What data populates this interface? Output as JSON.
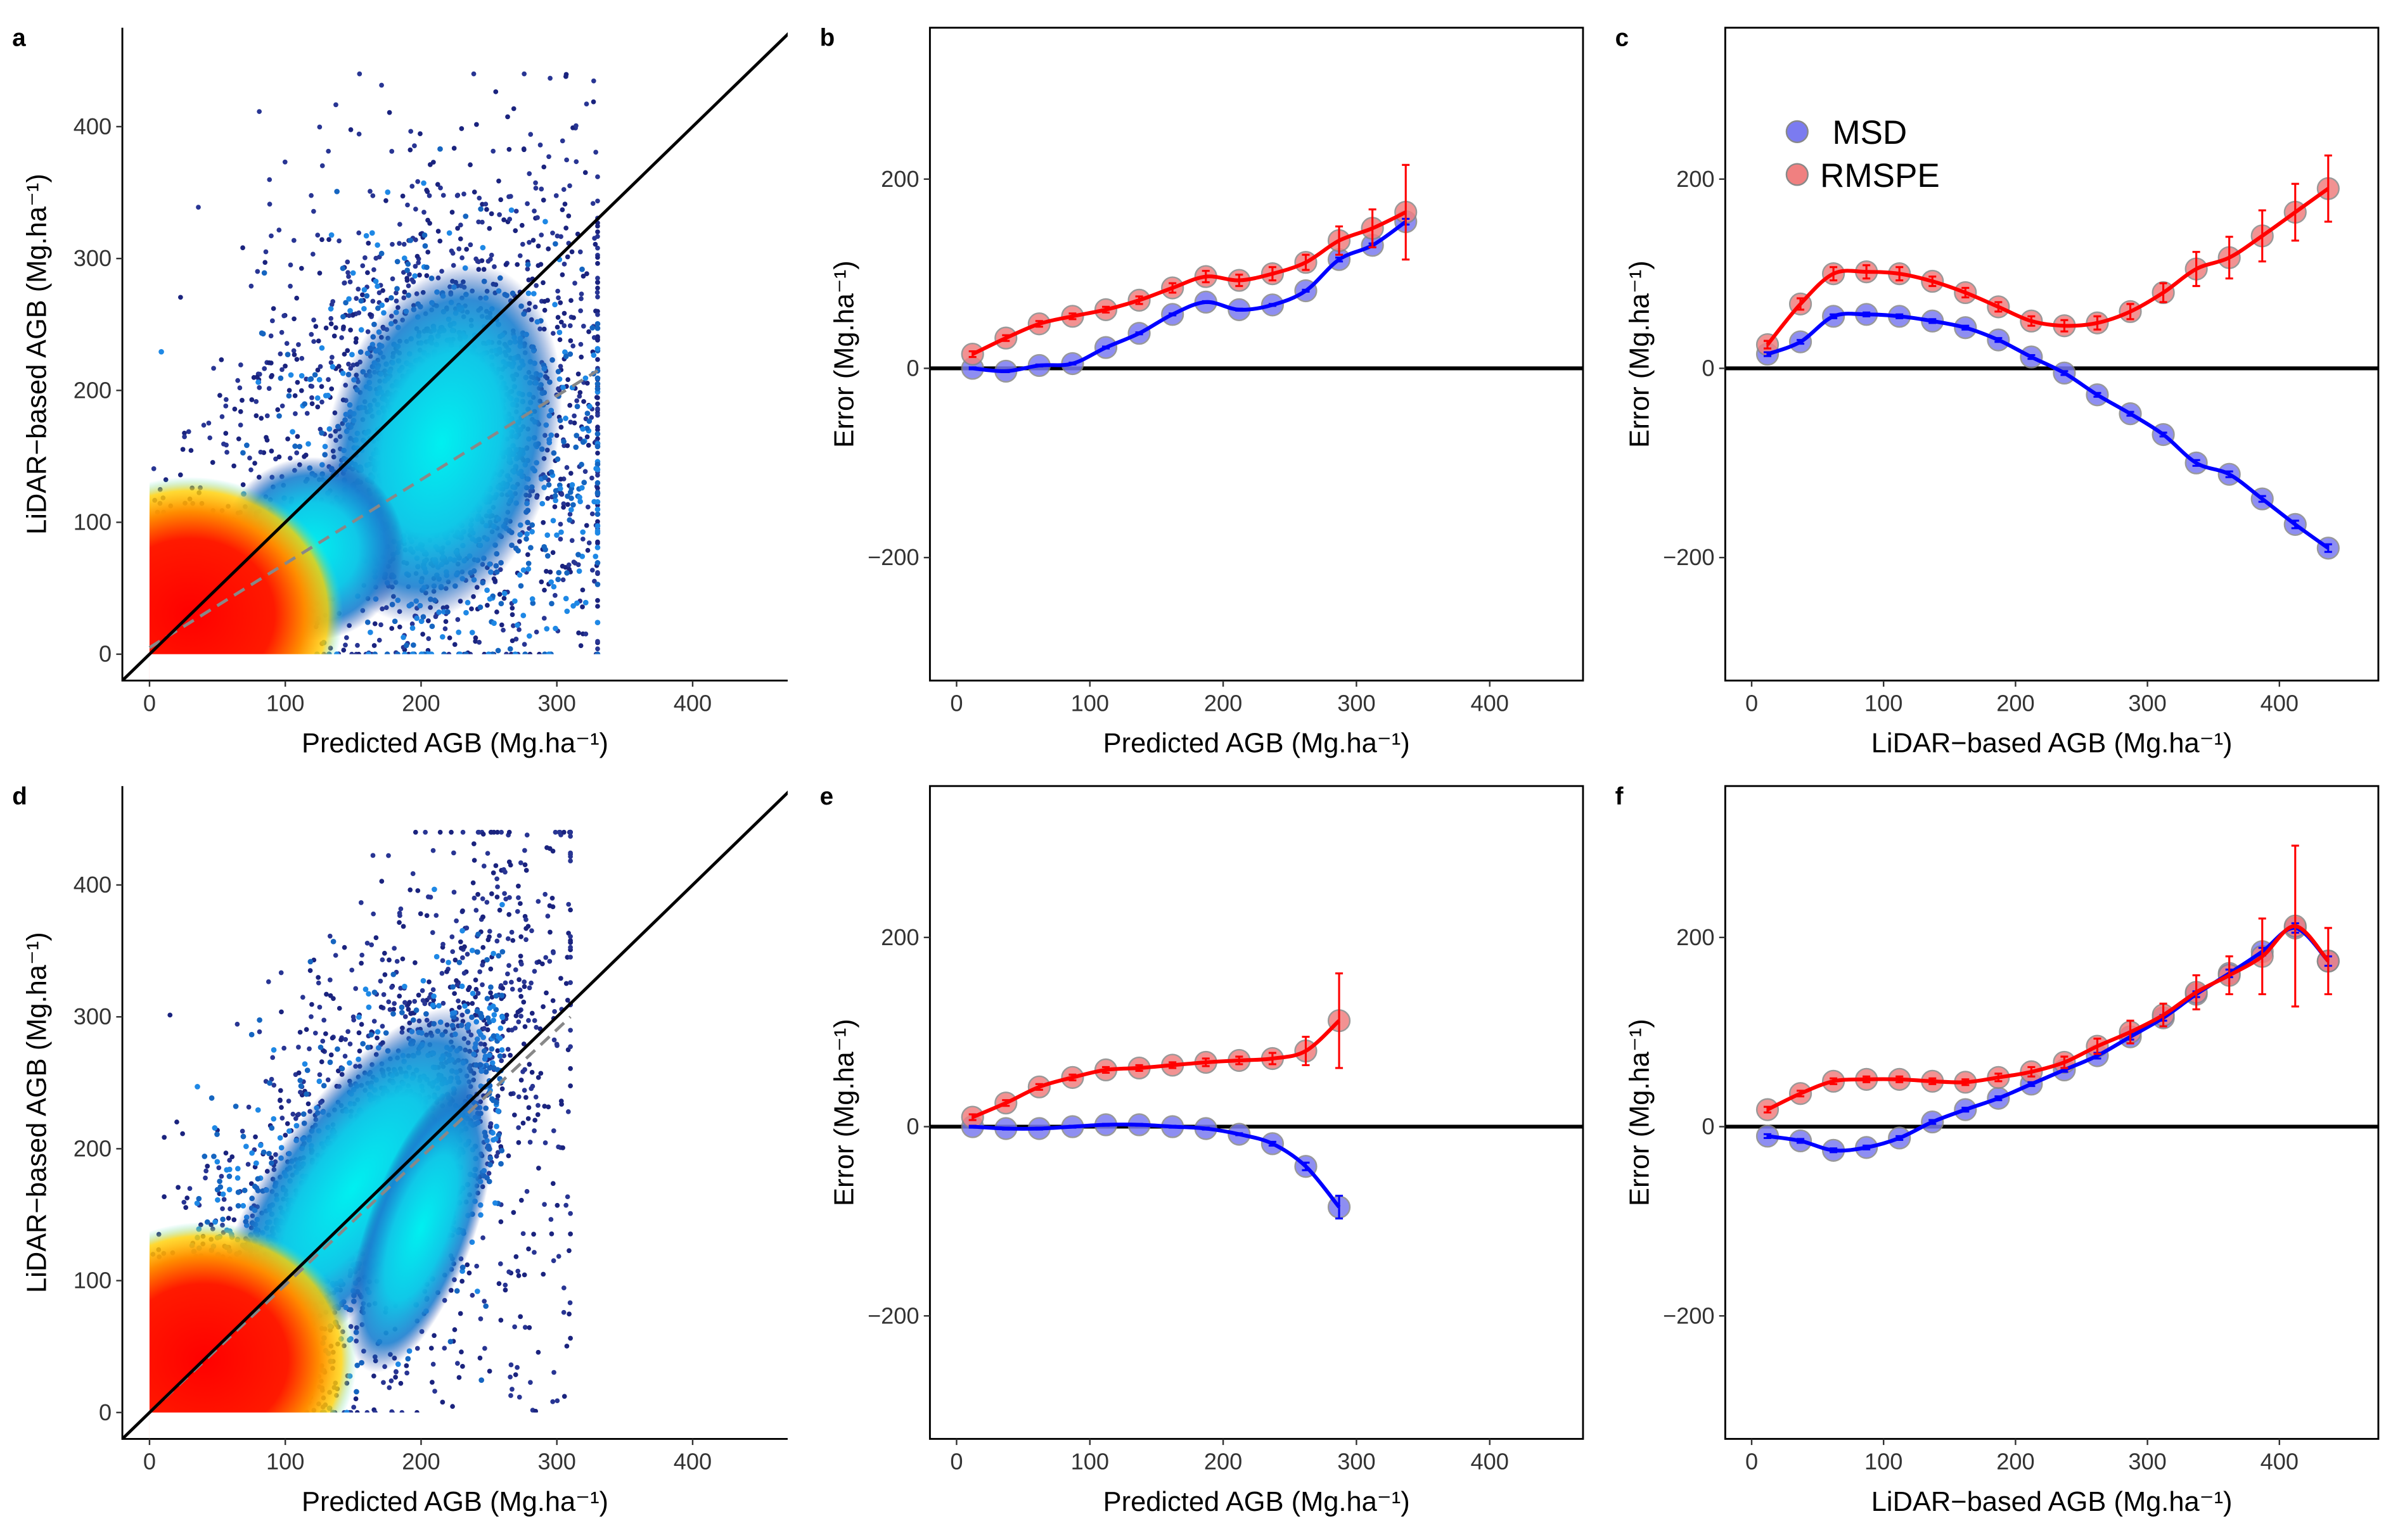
{
  "colors": {
    "msd": "#0000ff",
    "rmspe": "#ff0000",
    "msd_point": "#7b7bf0",
    "rmspe_point": "#f08080",
    "ref_line": "#000000",
    "fit_line": "#888888"
  },
  "legend": {
    "msd": "MSD",
    "rmspe": "RMSPE"
  },
  "chart_data": [
    {
      "panel": "a",
      "type": "scatter",
      "density": true,
      "xlabel": "Predicted AGB (Mg.ha⁻¹)",
      "ylabel": "LiDAR−based AGB (Mg.ha⁻¹)",
      "xlim": [
        -20,
        470
      ],
      "ylim": [
        -20,
        475
      ],
      "xticks": [
        0,
        100,
        200,
        300,
        400
      ],
      "yticks": [
        0,
        100,
        200,
        300,
        400
      ],
      "one_to_one_line": true,
      "regression_line": [
        [
          0,
          5
        ],
        [
          330,
          215
        ]
      ],
      "cloud": {
        "x_range": [
          0,
          330
        ],
        "y_range": [
          0,
          440
        ],
        "dense_center": [
          30,
          30
        ],
        "secondary_center": [
          220,
          150
        ]
      }
    },
    {
      "panel": "b",
      "type": "line",
      "xlabel": "Predicted AGB (Mg.ha⁻¹)",
      "ylabel": "Error (Mg.ha⁻¹)",
      "xlim": [
        -20,
        470
      ],
      "ylim": [
        -330,
        360
      ],
      "xticks": [
        0,
        100,
        200,
        300,
        400
      ],
      "yticks": [
        -200,
        0,
        200
      ],
      "x": [
        12,
        37,
        62,
        87,
        112,
        137,
        162,
        187,
        212,
        237,
        262,
        287,
        312,
        337
      ],
      "series": [
        {
          "name": "RMSPE",
          "values": [
            15,
            32,
            47,
            55,
            62,
            72,
            85,
            97,
            93,
            100,
            112,
            135,
            148,
            165
          ],
          "err": [
            3,
            3,
            3,
            3,
            3,
            4,
            5,
            6,
            6,
            7,
            8,
            15,
            20,
            50
          ]
        },
        {
          "name": "MSD",
          "values": [
            0,
            -3,
            3,
            5,
            22,
            37,
            57,
            70,
            62,
            67,
            82,
            115,
            130,
            155
          ],
          "err": [
            1,
            1,
            1,
            1,
            1,
            1,
            1,
            1,
            1,
            1,
            1,
            2,
            2,
            3
          ]
        }
      ]
    },
    {
      "panel": "c",
      "type": "line",
      "xlabel": "LiDAR−based AGB (Mg.ha⁻¹)",
      "ylabel": "Error (Mg.ha⁻¹)",
      "legend": "top-left",
      "xlim": [
        -20,
        475
      ],
      "ylim": [
        -330,
        360
      ],
      "xticks": [
        0,
        100,
        200,
        300,
        400
      ],
      "yticks": [
        -200,
        0,
        200
      ],
      "x": [
        12,
        37,
        62,
        87,
        112,
        137,
        162,
        187,
        212,
        237,
        262,
        287,
        312,
        337,
        362,
        387,
        412,
        437
      ],
      "series": [
        {
          "name": "RMSPE",
          "values": [
            25,
            68,
            100,
            102,
            100,
            92,
            80,
            65,
            50,
            45,
            48,
            60,
            80,
            105,
            117,
            140,
            165,
            190
          ],
          "err": [
            4,
            6,
            7,
            7,
            7,
            5,
            5,
            5,
            5,
            6,
            7,
            8,
            10,
            18,
            22,
            27,
            30,
            35
          ]
        },
        {
          "name": "MSD",
          "values": [
            15,
            28,
            55,
            57,
            55,
            50,
            43,
            30,
            12,
            -5,
            -28,
            -48,
            -70,
            -100,
            -112,
            -138,
            -165,
            -190
          ],
          "err": [
            2,
            2,
            2,
            2,
            2,
            2,
            2,
            2,
            2,
            2,
            2,
            2,
            2,
            3,
            3,
            3,
            4,
            4
          ]
        }
      ]
    },
    {
      "panel": "d",
      "type": "scatter",
      "density": true,
      "xlabel": "Predicted AGB (Mg.ha⁻¹)",
      "ylabel": "LiDAR−based AGB (Mg.ha⁻¹)",
      "xlim": [
        -20,
        470
      ],
      "ylim": [
        -20,
        475
      ],
      "xticks": [
        0,
        100,
        200,
        300,
        400
      ],
      "yticks": [
        0,
        100,
        200,
        300,
        400
      ],
      "one_to_one_line": true,
      "regression_line": [
        [
          0,
          0
        ],
        [
          310,
          300
        ]
      ],
      "cloud": {
        "x_range": [
          0,
          310
        ],
        "y_range": [
          0,
          440
        ],
        "dense_center": [
          40,
          40
        ],
        "secondary_center": [
          180,
          180
        ]
      }
    },
    {
      "panel": "e",
      "type": "line",
      "xlabel": "Predicted AGB (Mg.ha⁻¹)",
      "ylabel": "Error (Mg.ha⁻¹)",
      "xlim": [
        -20,
        470
      ],
      "ylim": [
        -330,
        360
      ],
      "xticks": [
        0,
        100,
        200,
        300,
        400
      ],
      "yticks": [
        -200,
        0,
        200
      ],
      "x": [
        12,
        37,
        62,
        87,
        112,
        137,
        162,
        187,
        212,
        237,
        262,
        287
      ],
      "series": [
        {
          "name": "RMSPE",
          "values": [
            10,
            25,
            42,
            52,
            60,
            62,
            65,
            68,
            70,
            72,
            80,
            112
          ],
          "err": [
            3,
            3,
            3,
            3,
            3,
            3,
            3,
            4,
            4,
            6,
            15,
            50
          ]
        },
        {
          "name": "MSD",
          "values": [
            0,
            -2,
            -2,
            0,
            2,
            2,
            0,
            -2,
            -8,
            -18,
            -42,
            -85
          ],
          "err": [
            1,
            1,
            1,
            1,
            1,
            1,
            1,
            1,
            1,
            2,
            4,
            12
          ]
        }
      ]
    },
    {
      "panel": "f",
      "type": "line",
      "xlabel": "LiDAR−based AGB (Mg.ha⁻¹)",
      "ylabel": "Error (Mg.ha⁻¹)",
      "xlim": [
        -20,
        475
      ],
      "ylim": [
        -330,
        360
      ],
      "xticks": [
        0,
        100,
        200,
        300,
        400
      ],
      "yticks": [
        -200,
        0,
        200
      ],
      "x": [
        12,
        37,
        62,
        87,
        112,
        137,
        162,
        187,
        212,
        237,
        262,
        287,
        312,
        337,
        362,
        387,
        412,
        437
      ],
      "series": [
        {
          "name": "RMSPE",
          "values": [
            18,
            35,
            48,
            50,
            50,
            48,
            47,
            52,
            58,
            68,
            85,
            100,
            118,
            142,
            160,
            180,
            212,
            175
          ],
          "err": [
            3,
            3,
            3,
            3,
            3,
            3,
            3,
            4,
            5,
            6,
            8,
            12,
            12,
            18,
            20,
            40,
            85,
            35
          ]
        },
        {
          "name": "MSD",
          "values": [
            -10,
            -15,
            -25,
            -22,
            -12,
            5,
            18,
            30,
            45,
            60,
            75,
            95,
            115,
            140,
            162,
            185,
            210,
            175
          ],
          "err": [
            2,
            2,
            2,
            2,
            2,
            2,
            2,
            2,
            2,
            2,
            3,
            3,
            3,
            3,
            4,
            4,
            5,
            5
          ]
        }
      ]
    }
  ]
}
